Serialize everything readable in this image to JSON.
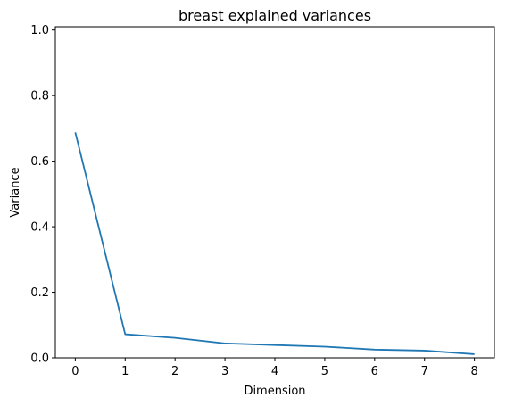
{
  "chart_data": {
    "type": "line",
    "title": "breast explained variances",
    "xlabel": "Dimension",
    "ylabel": "Variance",
    "x": [
      0,
      1,
      2,
      3,
      4,
      5,
      6,
      7,
      8
    ],
    "series": [
      {
        "values": [
          0.688,
          0.072,
          0.061,
          0.044,
          0.039,
          0.034,
          0.025,
          0.022,
          0.011
        ],
        "color": "#1f77b4"
      }
    ],
    "xlim": [
      -0.4,
      8.4
    ],
    "ylim": [
      0.0,
      1.01
    ],
    "xticks": [
      0,
      1,
      2,
      3,
      4,
      5,
      6,
      7,
      8
    ],
    "yticks": [
      0.0,
      0.2,
      0.4,
      0.6,
      0.8,
      1.0
    ],
    "ytick_labels": [
      "0.0",
      "0.2",
      "0.4",
      "0.6",
      "0.8",
      "1.0"
    ],
    "grid": false,
    "legend": "none"
  }
}
